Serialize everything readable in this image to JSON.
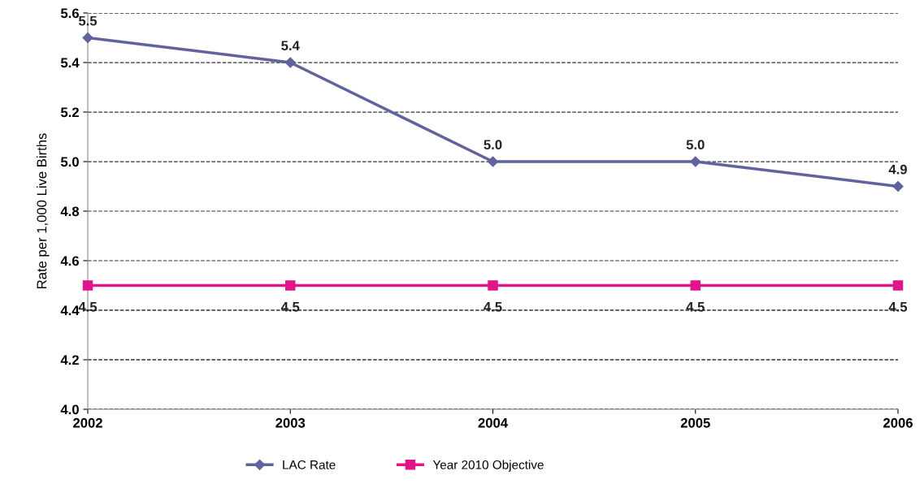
{
  "chart_data": {
    "type": "line",
    "ylabel": "Rate per 1,000 Live Births",
    "categories": [
      "2002",
      "2003",
      "2004",
      "2005",
      "2006"
    ],
    "series": [
      {
        "name": "LAC Rate",
        "color": "#62629e",
        "marker": "diamond",
        "values": [
          5.5,
          5.4,
          5.0,
          5.0,
          4.9
        ],
        "value_labels": [
          "5.5",
          "5.4",
          "5.0",
          "5.0",
          "4.9"
        ]
      },
      {
        "name": "Year 2010 Objective",
        "color": "#e0158c",
        "marker": "square",
        "values": [
          4.5,
          4.5,
          4.5,
          4.5,
          4.5
        ],
        "value_labels": [
          "4.5",
          "4.5",
          "4.5",
          "4.5",
          "4.5"
        ]
      }
    ],
    "ylim": [
      4.0,
      5.6
    ],
    "yticks": [
      {
        "value": 4.0,
        "label": "4.0"
      },
      {
        "value": 4.2,
        "label": "4.2"
      },
      {
        "value": 4.4,
        "label": "4.4"
      },
      {
        "value": 4.6,
        "label": "4.6"
      },
      {
        "value": 4.8,
        "label": "4.8"
      },
      {
        "value": 5.0,
        "label": "5.0"
      },
      {
        "value": 5.2,
        "label": "5.2"
      },
      {
        "value": 5.4,
        "label": "5.4"
      },
      {
        "value": 5.6,
        "label": "5.6"
      }
    ],
    "grid": "y",
    "legend": "bottom",
    "line_style": "solid"
  }
}
